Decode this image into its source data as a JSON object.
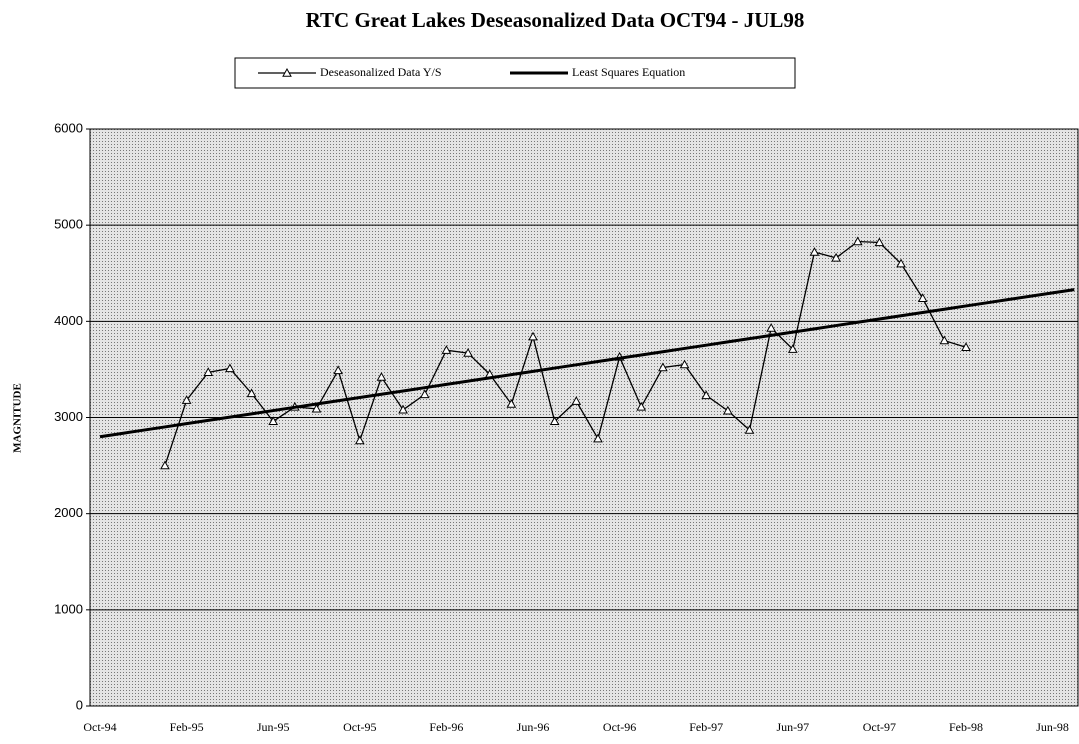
{
  "chart_data": {
    "type": "line",
    "title": "RTC Great Lakes Deseasonalized Data OCT94 - JUL98",
    "y_label": "MAGNITUDE",
    "categories": [
      "Oct-94",
      null,
      null,
      null,
      "Feb-95",
      null,
      null,
      null,
      "Jun-95",
      null,
      null,
      null,
      "Oct-95",
      null,
      null,
      null,
      "Feb-96",
      null,
      null,
      null,
      "Jun-96",
      null,
      null,
      null,
      "Oct-96",
      null,
      null,
      null,
      "Feb-97",
      null,
      null,
      null,
      "Jun-97",
      null,
      null,
      null,
      "Oct-97",
      null,
      null,
      null,
      "Feb-98",
      null,
      null,
      null,
      "Jun-98",
      null
    ],
    "series": [
      {
        "name": "Deseasonalized Data Y/S",
        "color": "#000000",
        "marker": "triangle",
        "values": [
          null,
          null,
          null,
          2500,
          3180,
          3470,
          3510,
          3250,
          2960,
          3110,
          3090,
          3490,
          2760,
          3420,
          3080,
          3240,
          3700,
          3670,
          3450,
          3140,
          3840,
          2960,
          3170,
          2780,
          3630,
          3110,
          3520,
          3550,
          3230,
          3070,
          2870,
          3930,
          3710,
          4720,
          4660,
          4830,
          4820,
          4600,
          4240,
          3800,
          3730,
          null,
          null,
          null,
          null,
          null
        ]
      },
      {
        "name": "Least Squares Equation",
        "color": "#000000",
        "marker": "none",
        "values": [
          2800,
          2834,
          2868,
          2902,
          2936,
          2970,
          3004,
          3038,
          3072,
          3106,
          3140,
          3174,
          3208,
          3242,
          3276,
          3310,
          3344,
          3378,
          3412,
          3446,
          3480,
          3514,
          3548,
          3582,
          3616,
          3650,
          3684,
          3718,
          3752,
          3786,
          3820,
          3854,
          3888,
          3922,
          3956,
          3990,
          4024,
          4058,
          4092,
          4126,
          4160,
          4194,
          4228,
          4262,
          4296,
          4330
        ]
      }
    ],
    "ylim": [
      0,
      6000
    ],
    "yticks": [
      0,
      1000,
      2000,
      3000,
      4000,
      5000,
      6000
    ],
    "grid": true
  }
}
